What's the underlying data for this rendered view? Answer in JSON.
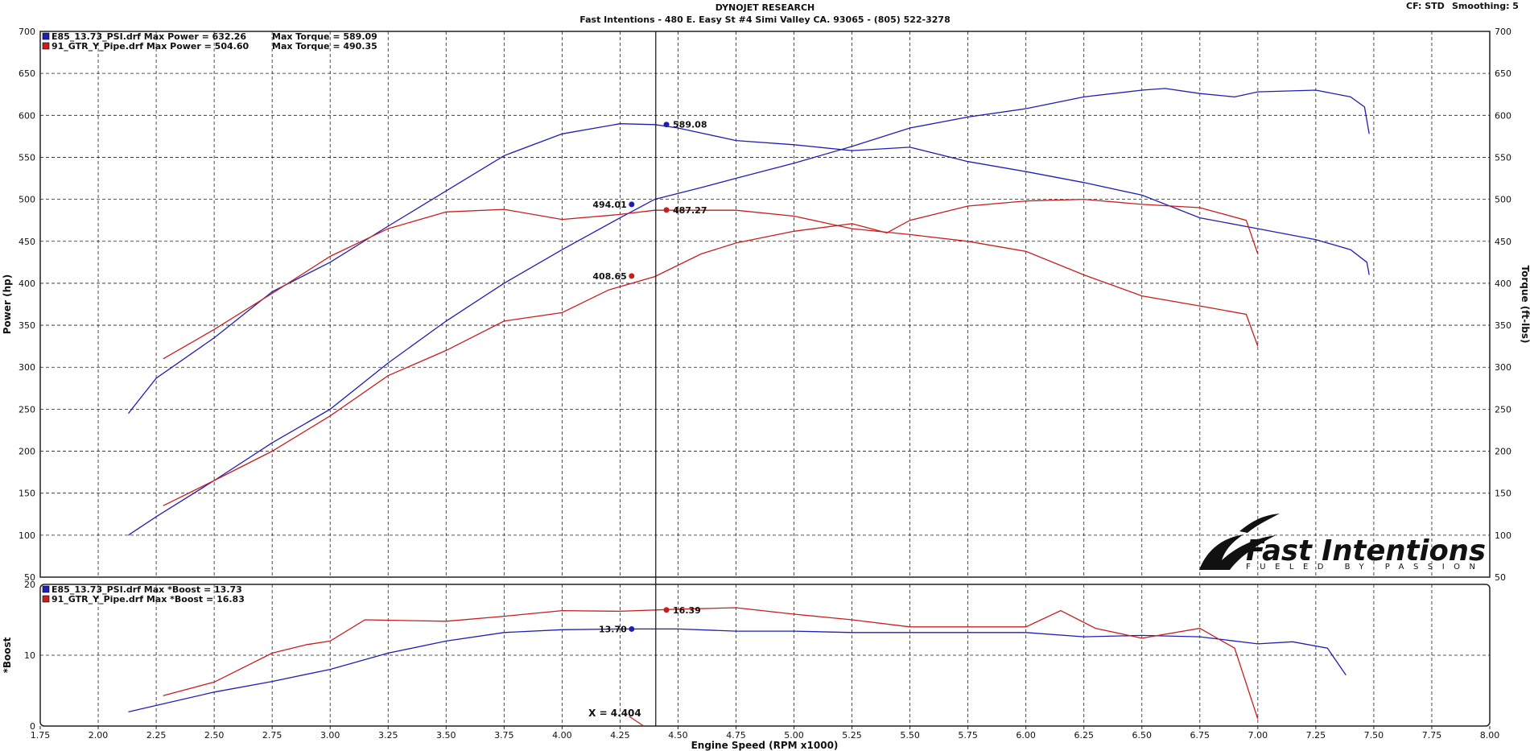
{
  "header": {
    "title": "DYNOJET RESEARCH",
    "subtitle": "Fast Intentions - 480 E. Easy St #4 Simi Valley CA. 93065 - (805) 522-3278",
    "cf": "CF: STD",
    "smoothing": "Smoothing: 5"
  },
  "logo": {
    "brand": "Fast Intentions",
    "tagline": "FUELED BY PASSION"
  },
  "cursor": {
    "x_readout": "X = 4.404",
    "x_value": 4.404
  },
  "colors": {
    "run1": "#1f1fb4",
    "run2": "#c81e1e",
    "grid": "#202020"
  },
  "chart_data": [
    {
      "type": "line",
      "panel": "main",
      "xlabel": "Engine Speed (RPM x1000)",
      "ylabel": "Power (hp)",
      "ylabel_right": "Torque (ft-lbs)",
      "xlim": [
        1.75,
        8.0
      ],
      "ylim": [
        50,
        700
      ],
      "x_ticks": [
        "1.75",
        "2.00",
        "2.25",
        "2.50",
        "2.75",
        "3.00",
        "3.25",
        "3.50",
        "3.75",
        "4.00",
        "4.25",
        "4.50",
        "4.75",
        "5.00",
        "5.25",
        "5.50",
        "5.75",
        "6.00",
        "6.25",
        "6.50",
        "6.75",
        "7.00",
        "7.25",
        "7.50",
        "7.75",
        "8.00"
      ],
      "y_ticks": [
        "700",
        "650",
        "600",
        "550",
        "500",
        "450",
        "400",
        "350",
        "300",
        "250",
        "200",
        "150",
        "100",
        "50"
      ],
      "legend": [
        {
          "marker": "run1",
          "text": "E85_13.73_PSI.drf Max Power = 632.26",
          "extra": "Max Torque = 589.09"
        },
        {
          "marker": "run2",
          "text": "91_GTR_Y_Pipe.drf Max Power = 504.60",
          "extra": "Max Torque = 490.35"
        }
      ],
      "series": [
        {
          "run": "run1",
          "kind": "power",
          "x": [
            2.13,
            2.25,
            2.5,
            2.75,
            3.0,
            3.25,
            3.5,
            3.75,
            4.0,
            4.25,
            4.4,
            4.6,
            4.75,
            5.0,
            5.25,
            5.5,
            5.75,
            6.0,
            6.25,
            6.5,
            6.6,
            6.75,
            6.9,
            7.0,
            7.25,
            7.4,
            7.46,
            7.48
          ],
          "y": [
            100,
            122,
            165,
            210,
            250,
            305,
            355,
            400,
            440,
            478,
            500,
            514,
            525,
            543,
            563,
            585,
            598,
            608,
            622,
            630,
            632,
            626,
            622,
            628,
            630,
            622,
            610,
            578
          ]
        },
        {
          "run": "run1",
          "kind": "torque",
          "x": [
            2.13,
            2.25,
            2.5,
            2.75,
            3.0,
            3.25,
            3.5,
            3.75,
            4.0,
            4.25,
            4.4,
            4.5,
            4.75,
            5.0,
            5.25,
            5.5,
            5.75,
            6.0,
            6.25,
            6.5,
            6.75,
            7.0,
            7.25,
            7.4,
            7.47,
            7.48
          ],
          "y": [
            245,
            287,
            335,
            390,
            425,
            468,
            510,
            552,
            578,
            590,
            589,
            585,
            570,
            565,
            558,
            562,
            545,
            533,
            520,
            505,
            478,
            465,
            452,
            440,
            425,
            410
          ]
        },
        {
          "run": "run2",
          "kind": "power",
          "x": [
            2.28,
            2.5,
            2.75,
            3.0,
            3.25,
            3.5,
            3.75,
            4.0,
            4.2,
            4.4,
            4.6,
            4.75,
            5.0,
            5.25,
            5.4,
            5.5,
            5.75,
            6.0,
            6.25,
            6.5,
            6.75,
            6.95,
            7.0
          ],
          "y": [
            135,
            165,
            200,
            242,
            290,
            320,
            355,
            365,
            392,
            408,
            435,
            448,
            462,
            471,
            460,
            475,
            492,
            498,
            500,
            494,
            490,
            475,
            435
          ]
        },
        {
          "run": "run2",
          "kind": "torque",
          "x": [
            2.28,
            2.5,
            2.75,
            3.0,
            3.25,
            3.5,
            3.75,
            4.0,
            4.25,
            4.4,
            4.75,
            5.0,
            5.25,
            5.5,
            5.75,
            6.0,
            6.25,
            6.5,
            6.75,
            6.95,
            7.0
          ],
          "y": [
            310,
            345,
            388,
            432,
            465,
            485,
            488,
            476,
            482,
            487,
            487,
            480,
            465,
            458,
            450,
            438,
            410,
            385,
            373,
            363,
            325
          ]
        }
      ],
      "markers": [
        {
          "run": "run1",
          "x": 4.3,
          "y": 494.01,
          "label": "494.01",
          "side": "left"
        },
        {
          "run": "run2",
          "x": 4.45,
          "y": 487.27,
          "label": "487.27",
          "side": "right"
        },
        {
          "run": "run1",
          "x": 4.45,
          "y": 589.08,
          "label": "589.08",
          "side": "right"
        },
        {
          "run": "run2",
          "x": 4.3,
          "y": 408.65,
          "label": "408.65",
          "side": "left"
        }
      ]
    },
    {
      "type": "line",
      "panel": "boost",
      "ylabel": "*Boost",
      "xlim": [
        1.75,
        8.0
      ],
      "ylim": [
        0,
        20
      ],
      "y_ticks": [
        "20",
        "10",
        "0"
      ],
      "legend": [
        {
          "marker": "run1",
          "text": "E85_13.73_PSI.drf Max *Boost = 13.73"
        },
        {
          "marker": "run2",
          "text": "91_GTR_Y_Pipe.drf Max *Boost = 16.83"
        }
      ],
      "series": [
        {
          "run": "run1",
          "x": [
            2.13,
            2.5,
            2.75,
            3.0,
            3.25,
            3.5,
            3.75,
            4.0,
            4.25,
            4.5,
            4.75,
            5.0,
            5.25,
            5.5,
            5.75,
            6.0,
            6.25,
            6.5,
            6.75,
            7.0,
            7.15,
            7.3,
            7.38
          ],
          "y": [
            2.0,
            4.8,
            6.3,
            8.0,
            10.3,
            12.0,
            13.2,
            13.6,
            13.7,
            13.7,
            13.4,
            13.4,
            13.2,
            13.2,
            13.2,
            13.2,
            12.6,
            12.8,
            12.6,
            11.6,
            11.9,
            11.0,
            7.2
          ]
        },
        {
          "run": "run2",
          "x": [
            2.28,
            2.5,
            2.75,
            2.9,
            3.0,
            3.15,
            3.5,
            3.75,
            4.0,
            4.25,
            4.5,
            4.75,
            5.0,
            5.25,
            5.5,
            6.0,
            6.15,
            6.3,
            6.5,
            6.75,
            6.9,
            7.0
          ],
          "y": [
            4.3,
            6.2,
            10.3,
            11.5,
            12.0,
            15.0,
            14.8,
            15.5,
            16.3,
            16.2,
            16.5,
            16.7,
            15.8,
            15.0,
            14.0,
            14.0,
            16.3,
            13.8,
            12.4,
            13.8,
            11.0,
            1.0
          ]
        }
      ],
      "markers": [
        {
          "run": "run1",
          "x": 4.3,
          "y": 13.7,
          "label": "13.70",
          "side": "left"
        },
        {
          "run": "run2",
          "x": 4.45,
          "y": 16.39,
          "label": "16.39",
          "side": "right"
        }
      ]
    }
  ]
}
